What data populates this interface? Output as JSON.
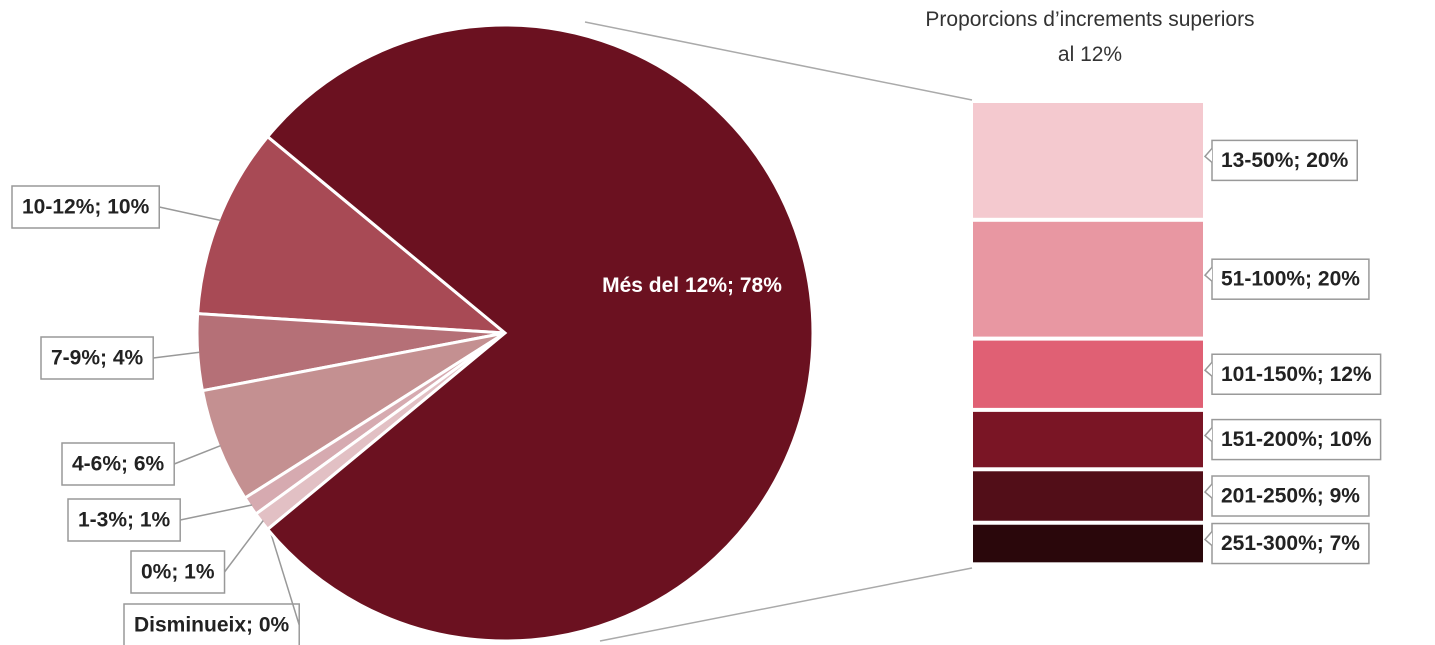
{
  "chart_data": {
    "type": "pie-of-bar",
    "pie": {
      "labels": [
        "10-12%; 10%",
        "7-9%; 4%",
        "4-6%; 6%",
        "1-3%; 1%",
        "0%; 1%",
        "Disminueix; 0%",
        "Més del 12%; 78%"
      ],
      "values": [
        10,
        4,
        6,
        1,
        1,
        0,
        78
      ],
      "colors": [
        "#a84a55",
        "#b57077",
        "#c49091",
        "#d6aab0",
        "#e2c0c4",
        "#e8ccd0",
        "#6b1120"
      ]
    },
    "bar": {
      "title": "Proporcions d’increments superiors al 12%",
      "labels": [
        "13-50%; 20%",
        "51-100%; 20%",
        "101-150%; 12%",
        "151-200%; 10%",
        "201-250%; 9%",
        "251-300%; 7%"
      ],
      "values": [
        20,
        20,
        12,
        10,
        9,
        7
      ],
      "colors": [
        "#f4c9cf",
        "#e897a2",
        "#e06074",
        "#7a1525",
        "#520e18",
        "#2a070b"
      ]
    }
  }
}
